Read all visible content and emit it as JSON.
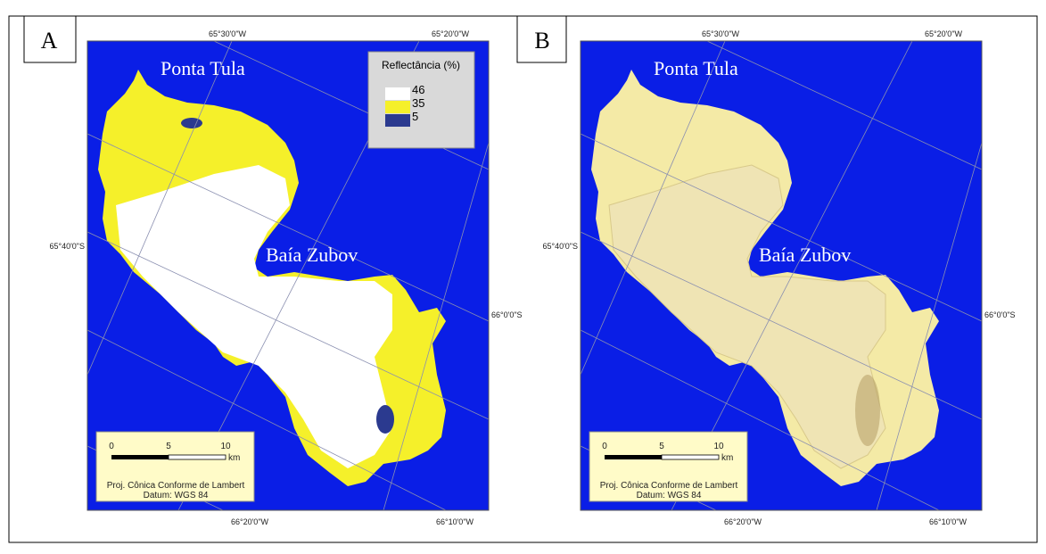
{
  "panels": [
    {
      "label": "A",
      "places": [
        "Ponta Tula",
        "Baía Zubov"
      ],
      "top_ticks": [
        "65°30'0\"W",
        "65°20'0\"W"
      ],
      "left_tick": "65°40'0\"S",
      "right_tick": "66°0'0\"S",
      "bottom_ticks": [
        "66°20'0\"W",
        "66°10'0\"W"
      ],
      "legend": {
        "title": "Reflectância (%)",
        "entries": [
          46,
          35,
          5
        ],
        "colors": [
          "#ffffff",
          "#f5f02a",
          "#2b3a8f"
        ]
      },
      "scale": {
        "ticks": [
          0,
          5,
          10
        ],
        "unit": "km"
      },
      "projection": "Proj. Cônica Conforme de Lambert",
      "datum": "Datum: WGS 84"
    },
    {
      "label": "B",
      "places": [
        "Ponta Tula",
        "Baía Zubov"
      ],
      "top_ticks": [
        "65°30'0\"W",
        "65°20'0\"W"
      ],
      "left_tick": "65°40'0\"S",
      "right_tick": "66°0'0\"S",
      "bottom_ticks": [
        "66°20'0\"W",
        "66°10'0\"W"
      ],
      "scale": {
        "ticks": [
          0,
          5,
          10
        ],
        "unit": "km"
      },
      "projection": "Proj. Cônica Conforme de Lambert",
      "datum": "Datum: WGS 84"
    }
  ]
}
